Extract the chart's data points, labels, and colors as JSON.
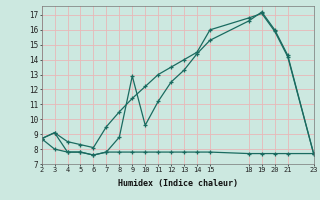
{
  "bg_color": "#cce8e0",
  "line_color": "#1a6b60",
  "grid_color": "#e8b8b8",
  "xlabel": "Humidex (Indice chaleur)",
  "xlim": [
    2,
    23
  ],
  "ylim": [
    7,
    17.6
  ],
  "xticks": [
    2,
    3,
    4,
    5,
    6,
    7,
    8,
    9,
    10,
    11,
    12,
    13,
    14,
    15,
    18,
    19,
    20,
    21,
    23
  ],
  "yticks": [
    7,
    8,
    9,
    10,
    11,
    12,
    13,
    14,
    15,
    16,
    17
  ],
  "line1_x": [
    2,
    3,
    4,
    5,
    6,
    7,
    8,
    9,
    10,
    11,
    12,
    13,
    14,
    15,
    18,
    19,
    20,
    21,
    23
  ],
  "line1_y": [
    8.7,
    9.1,
    7.8,
    7.8,
    7.6,
    7.8,
    8.8,
    12.9,
    9.6,
    11.2,
    12.5,
    13.3,
    14.4,
    15.3,
    16.6,
    17.2,
    16.0,
    14.3,
    7.7
  ],
  "line2_x": [
    2,
    3,
    4,
    5,
    6,
    7,
    8,
    9,
    10,
    11,
    12,
    13,
    14,
    15,
    18,
    19,
    20,
    21,
    23
  ],
  "line2_y": [
    8.7,
    8.0,
    7.8,
    7.8,
    7.6,
    7.8,
    7.8,
    7.8,
    7.8,
    7.8,
    7.8,
    7.8,
    7.8,
    7.8,
    7.7,
    7.7,
    7.7,
    7.7,
    7.7
  ],
  "line3_x": [
    2,
    3,
    4,
    5,
    6,
    7,
    8,
    9,
    10,
    11,
    12,
    13,
    14,
    15,
    18,
    19,
    20,
    21,
    23
  ],
  "line3_y": [
    8.7,
    9.1,
    8.5,
    8.3,
    8.1,
    9.5,
    10.5,
    11.4,
    12.2,
    13.0,
    13.5,
    14.0,
    14.5,
    16.0,
    16.8,
    17.1,
    15.9,
    14.2,
    7.7
  ]
}
